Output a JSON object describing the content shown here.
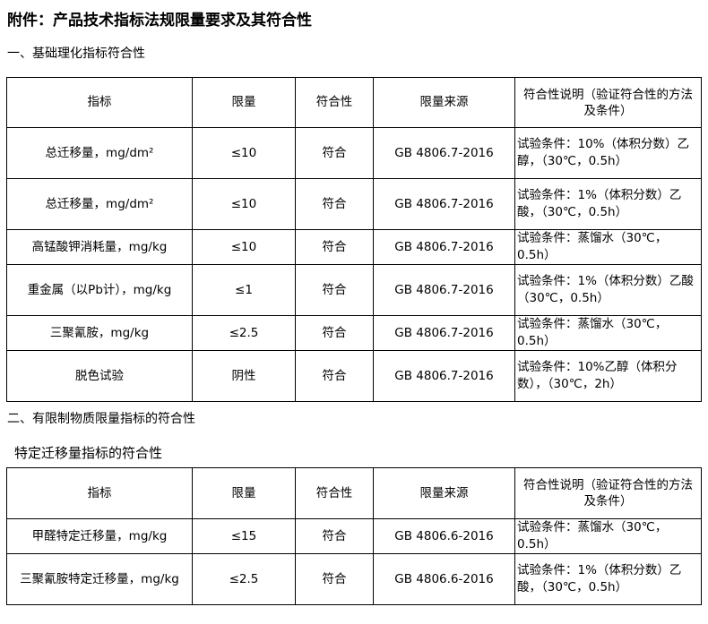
{
  "title": "附件：产品技术指标法规限量要求及其符合性",
  "section1": "一、基础理化指标符合性",
  "section2": "二、有限制物质限量指标的符合性",
  "section2_sub": "特定迁移量指标的符合性",
  "headers": [
    "指标",
    "限量",
    "符合性",
    "限量来源",
    "符合性说明（验证符合性的方法及条件）"
  ],
  "table1": [
    [
      "总迁移量，mg/dm²",
      "≤10",
      "符合",
      "GB 4806.7-2016",
      "试验条件：10%（体积分数）乙醇，（30℃，0.5h）"
    ],
    [
      "总迁移量，mg/dm²",
      "≤10",
      "符合",
      "GB 4806.7-2016",
      "试验条件：1%（体积分数）乙酸，（30℃，0.5h）"
    ],
    [
      "高锰酸钾消耗量，mg/kg",
      "≤10",
      "符合",
      "GB 4806.7-2016",
      "试验条件：蒸馏水（30℃，0.5h）"
    ],
    [
      "重金属（以Pb计），mg/kg",
      "≤1",
      "符合",
      "GB 4806.7-2016",
      "试验条件：1%（体积分数）乙酸（30℃，0.5h）"
    ],
    [
      "三聚氰胺，mg/kg",
      "≤2.5",
      "符合",
      "GB 4806.7-2016",
      "试验条件：蒸馏水（30℃，0.5h）"
    ],
    [
      "脱色试验",
      "阴性",
      "符合",
      "GB 4806.7-2016",
      "试验条件：10%乙醇（体积分数），（30℃，2h）"
    ]
  ],
  "table2": [
    [
      "甲醛特定迁移量，mg/kg",
      "≤15",
      "符合",
      "GB 4806.6-2016",
      "试验条件：蒸馏水（30℃，0.5h）"
    ],
    [
      "三聚氰胺特定迁移量，mg/kg",
      "≤2.5",
      "符合",
      "GB 4806.6-2016",
      "试验条件：1%（体积分数）乙酸，（30℃，0.5h）"
    ]
  ]
}
